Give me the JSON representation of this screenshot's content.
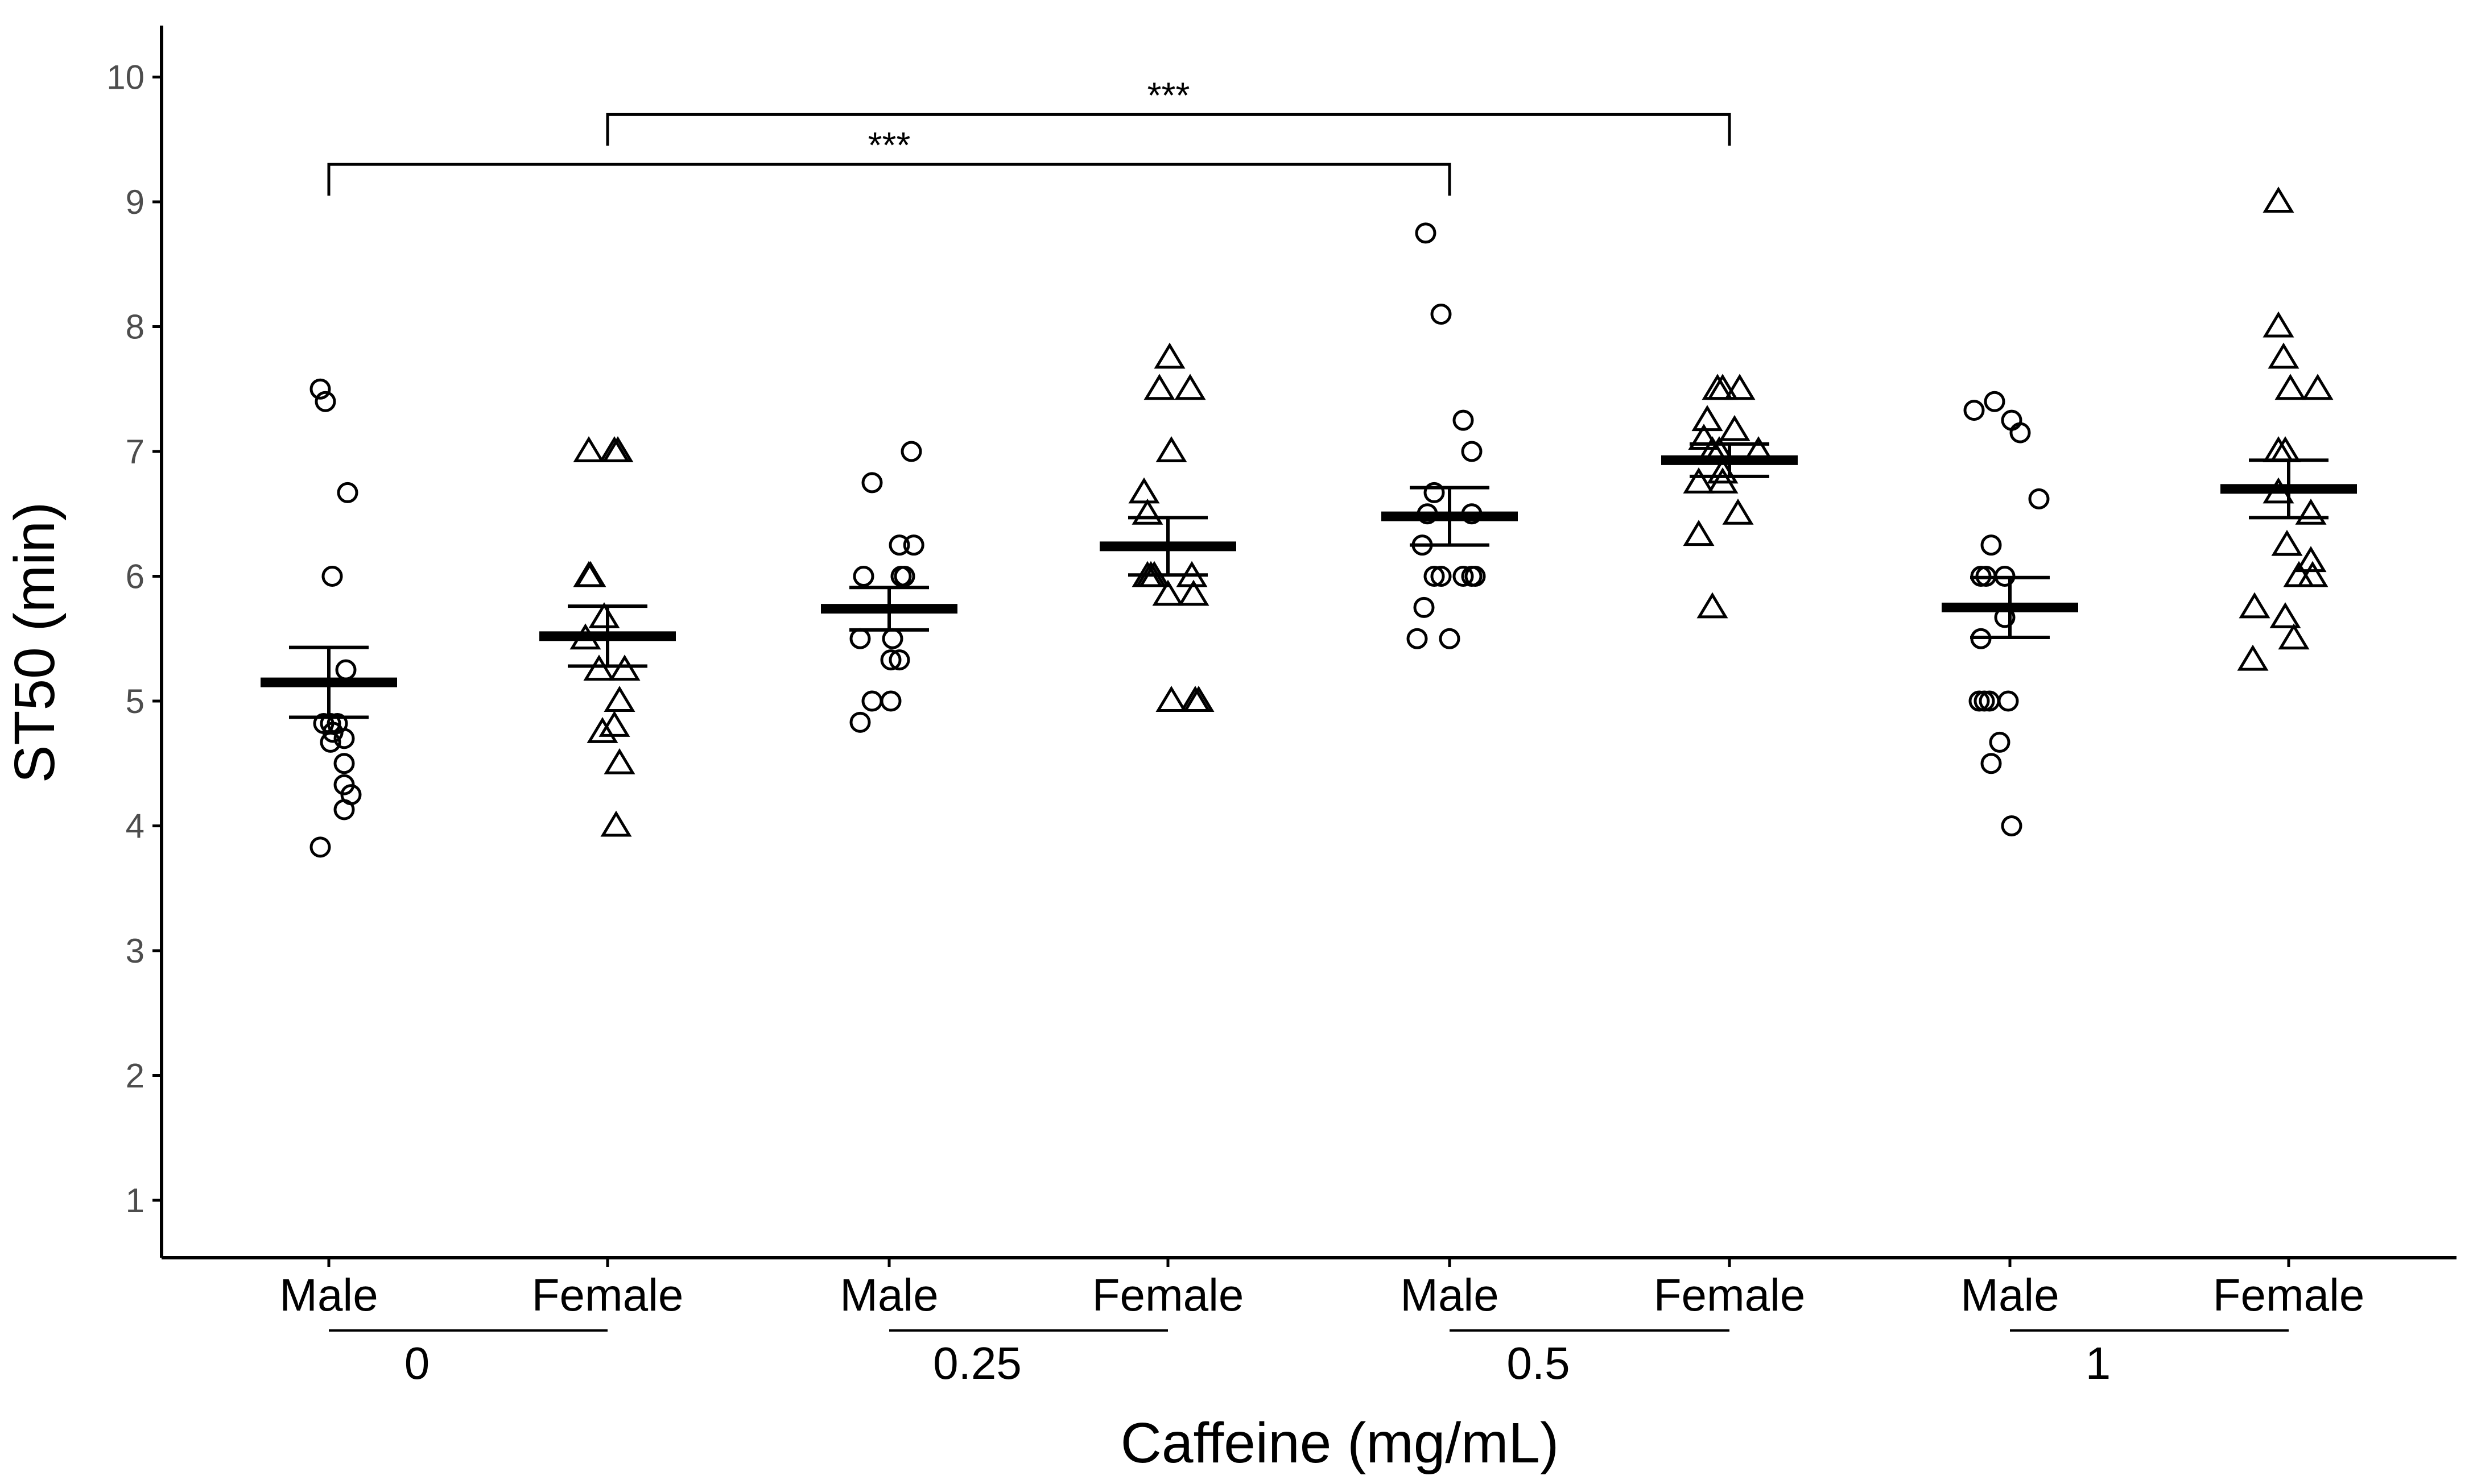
{
  "chart_data": {
    "type": "scatter",
    "subtype": "dot-plot-with-mean-and-sem",
    "ylabel": "ST50 (min)",
    "xlabel": "Caffeine (mg/mL)",
    "ylim": [
      0.55,
      10.45
    ],
    "yticks": [
      "1",
      "2",
      "3",
      "4",
      "5",
      "6",
      "7",
      "8",
      "9",
      "10"
    ],
    "legend": "none",
    "groups": [
      {
        "dose": "0",
        "subgroups": [
          {
            "sex": "Male",
            "marker": "circle",
            "mean": 5.15,
            "sem_low": 4.87,
            "sem_high": 5.43,
            "points": [
              {
                "jitter": -0.25,
                "y": 7.5
              },
              {
                "jitter": -0.1,
                "y": 7.4
              },
              {
                "jitter": 0.55,
                "y": 6.67
              },
              {
                "jitter": 0.1,
                "y": 6.0
              },
              {
                "jitter": 0.5,
                "y": 5.25
              },
              {
                "jitter": -0.15,
                "y": 4.82
              },
              {
                "jitter": 0.05,
                "y": 4.82
              },
              {
                "jitter": 0.25,
                "y": 4.82
              },
              {
                "jitter": 0.12,
                "y": 4.75
              },
              {
                "jitter": 0.45,
                "y": 4.7
              },
              {
                "jitter": 0.05,
                "y": 4.67
              },
              {
                "jitter": 0.45,
                "y": 4.5
              },
              {
                "jitter": 0.45,
                "y": 4.33
              },
              {
                "jitter": 0.65,
                "y": 4.25
              },
              {
                "jitter": 0.45,
                "y": 4.13
              },
              {
                "jitter": -0.25,
                "y": 3.83
              }
            ]
          },
          {
            "sex": "Female",
            "marker": "triangle",
            "mean": 5.52,
            "sem_low": 5.28,
            "sem_high": 5.76,
            "points": [
              {
                "jitter": -0.55,
                "y": 7.0
              },
              {
                "jitter": 0.2,
                "y": 7.0
              },
              {
                "jitter": 0.3,
                "y": 7.0
              },
              {
                "jitter": -0.5,
                "y": 6.0
              },
              {
                "jitter": -0.55,
                "y": 6.0
              },
              {
                "jitter": -0.65,
                "y": 5.5
              },
              {
                "jitter": -0.1,
                "y": 5.67
              },
              {
                "jitter": -0.25,
                "y": 5.25
              },
              {
                "jitter": 0.5,
                "y": 5.25
              },
              {
                "jitter": 0.35,
                "y": 5.0
              },
              {
                "jitter": 0.2,
                "y": 4.8
              },
              {
                "jitter": -0.15,
                "y": 4.75
              },
              {
                "jitter": 0.35,
                "y": 4.5
              },
              {
                "jitter": 0.25,
                "y": 4.0
              }
            ]
          }
        ]
      },
      {
        "dose": "0.25",
        "subgroups": [
          {
            "sex": "Male",
            "marker": "circle",
            "mean": 5.74,
            "sem_low": 5.57,
            "sem_high": 5.91,
            "points": [
              {
                "jitter": 0.65,
                "y": 7.0
              },
              {
                "jitter": -0.5,
                "y": 6.75
              },
              {
                "jitter": 0.3,
                "y": 6.25
              },
              {
                "jitter": 0.72,
                "y": 6.25
              },
              {
                "jitter": -0.75,
                "y": 6.0
              },
              {
                "jitter": 0.35,
                "y": 6.0
              },
              {
                "jitter": 0.45,
                "y": 6.0
              },
              {
                "jitter": -0.85,
                "y": 5.5
              },
              {
                "jitter": 0.1,
                "y": 5.5
              },
              {
                "jitter": 0.05,
                "y": 5.33
              },
              {
                "jitter": 0.3,
                "y": 5.33
              },
              {
                "jitter": -0.5,
                "y": 5.0
              },
              {
                "jitter": 0.05,
                "y": 5.0
              },
              {
                "jitter": -0.85,
                "y": 4.83
              }
            ]
          },
          {
            "sex": "Female",
            "marker": "triangle",
            "mean": 6.24,
            "sem_low": 6.01,
            "sem_high": 6.47,
            "points": [
              {
                "jitter": 0.05,
                "y": 7.75
              },
              {
                "jitter": -0.25,
                "y": 7.5
              },
              {
                "jitter": 0.65,
                "y": 7.5
              },
              {
                "jitter": 0.1,
                "y": 7.0
              },
              {
                "jitter": -0.7,
                "y": 6.67
              },
              {
                "jitter": -0.6,
                "y": 6.5
              },
              {
                "jitter": -0.6,
                "y": 6.0
              },
              {
                "jitter": -0.5,
                "y": 6.0
              },
              {
                "jitter": -0.4,
                "y": 6.0
              },
              {
                "jitter": 0.7,
                "y": 6.0
              },
              {
                "jitter": 0.75,
                "y": 5.85
              },
              {
                "jitter": 0.0,
                "y": 5.85
              },
              {
                "jitter": 0.1,
                "y": 5.0
              },
              {
                "jitter": 0.8,
                "y": 5.0
              },
              {
                "jitter": 0.9,
                "y": 5.0
              }
            ]
          }
        ]
      },
      {
        "dose": "0.5",
        "subgroups": [
          {
            "sex": "Male",
            "marker": "circle",
            "mean": 6.48,
            "sem_low": 6.25,
            "sem_high": 6.71,
            "points": [
              {
                "jitter": -0.7,
                "y": 8.75
              },
              {
                "jitter": -0.25,
                "y": 8.1
              },
              {
                "jitter": 0.4,
                "y": 7.25
              },
              {
                "jitter": 0.65,
                "y": 7.0
              },
              {
                "jitter": -0.45,
                "y": 6.67
              },
              {
                "jitter": -0.65,
                "y": 6.5
              },
              {
                "jitter": 0.65,
                "y": 6.5
              },
              {
                "jitter": -0.8,
                "y": 6.25
              },
              {
                "jitter": -0.45,
                "y": 6.0
              },
              {
                "jitter": -0.25,
                "y": 6.0
              },
              {
                "jitter": 0.4,
                "y": 6.0
              },
              {
                "jitter": 0.65,
                "y": 6.0
              },
              {
                "jitter": 0.75,
                "y": 6.0
              },
              {
                "jitter": -0.75,
                "y": 5.75
              },
              {
                "jitter": -0.95,
                "y": 5.5
              },
              {
                "jitter": 0.0,
                "y": 5.5
              }
            ]
          },
          {
            "sex": "Female",
            "marker": "triangle",
            "mean": 6.93,
            "sem_low": 6.8,
            "sem_high": 7.06,
            "points": [
              {
                "jitter": -0.35,
                "y": 7.5
              },
              {
                "jitter": -0.2,
                "y": 7.5
              },
              {
                "jitter": 0.3,
                "y": 7.5
              },
              {
                "jitter": -0.65,
                "y": 7.25
              },
              {
                "jitter": 0.15,
                "y": 7.17
              },
              {
                "jitter": -0.75,
                "y": 7.1
              },
              {
                "jitter": -0.5,
                "y": 7.0
              },
              {
                "jitter": -0.3,
                "y": 7.0
              },
              {
                "jitter": 0.85,
                "y": 7.0
              },
              {
                "jitter": -0.2,
                "y": 6.83
              },
              {
                "jitter": -0.9,
                "y": 6.75
              },
              {
                "jitter": -0.2,
                "y": 6.75
              },
              {
                "jitter": 0.25,
                "y": 6.5
              },
              {
                "jitter": -0.9,
                "y": 6.33
              },
              {
                "jitter": -0.5,
                "y": 5.75
              }
            ]
          }
        ]
      },
      {
        "dose": "1",
        "subgroups": [
          {
            "sex": "Male",
            "marker": "circle",
            "mean": 5.75,
            "sem_low": 5.51,
            "sem_high": 5.99,
            "points": [
              {
                "jitter": -0.45,
                "y": 7.4
              },
              {
                "jitter": -1.05,
                "y": 7.33
              },
              {
                "jitter": 0.05,
                "y": 7.25
              },
              {
                "jitter": 0.3,
                "y": 7.15
              },
              {
                "jitter": 0.85,
                "y": 6.62
              },
              {
                "jitter": -0.55,
                "y": 6.25
              },
              {
                "jitter": -0.85,
                "y": 6.0
              },
              {
                "jitter": -0.7,
                "y": 6.0
              },
              {
                "jitter": -0.15,
                "y": 6.0
              },
              {
                "jitter": -0.15,
                "y": 5.67
              },
              {
                "jitter": -0.85,
                "y": 5.5
              },
              {
                "jitter": -0.9,
                "y": 5.0
              },
              {
                "jitter": -0.75,
                "y": 5.0
              },
              {
                "jitter": -0.6,
                "y": 5.0
              },
              {
                "jitter": -0.05,
                "y": 5.0
              },
              {
                "jitter": -0.3,
                "y": 4.67
              },
              {
                "jitter": -0.55,
                "y": 4.5
              },
              {
                "jitter": 0.05,
                "y": 4.0
              }
            ]
          },
          {
            "sex": "Female",
            "marker": "triangle",
            "mean": 6.7,
            "sem_low": 6.47,
            "sem_high": 6.93,
            "points": [
              {
                "jitter": -0.3,
                "y": 9.0
              },
              {
                "jitter": -0.3,
                "y": 8.0
              },
              {
                "jitter": -0.15,
                "y": 7.75
              },
              {
                "jitter": 0.05,
                "y": 7.5
              },
              {
                "jitter": 0.85,
                "y": 7.5
              },
              {
                "jitter": -0.3,
                "y": 7.0
              },
              {
                "jitter": -0.1,
                "y": 7.0
              },
              {
                "jitter": -0.3,
                "y": 6.67
              },
              {
                "jitter": 0.65,
                "y": 6.5
              },
              {
                "jitter": -0.05,
                "y": 6.25
              },
              {
                "jitter": 0.65,
                "y": 6.12
              },
              {
                "jitter": 0.3,
                "y": 6.0
              },
              {
                "jitter": 0.7,
                "y": 6.0
              },
              {
                "jitter": -1.0,
                "y": 5.75
              },
              {
                "jitter": -0.1,
                "y": 5.67
              },
              {
                "jitter": 0.15,
                "y": 5.5
              },
              {
                "jitter": -1.05,
                "y": 5.33
              }
            ]
          }
        ]
      }
    ],
    "comparisons": [
      {
        "from": [
          0,
          0
        ],
        "to": [
          2,
          0
        ],
        "y": 9.3,
        "label": "***"
      },
      {
        "from": [
          0,
          1
        ],
        "to": [
          2,
          1
        ],
        "y": 9.7,
        "label": "***"
      }
    ]
  }
}
